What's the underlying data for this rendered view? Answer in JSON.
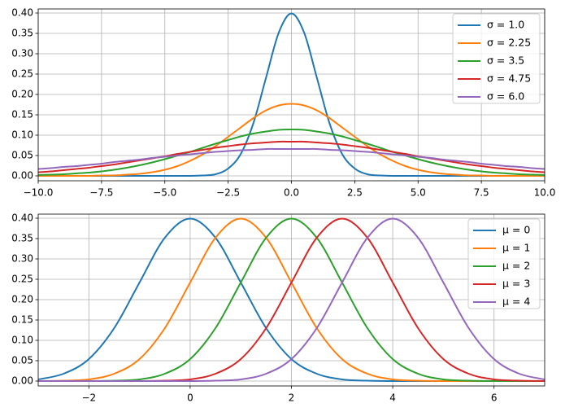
{
  "chart_data": [
    {
      "type": "line",
      "grid": true,
      "legend": "upper right",
      "x": [
        -10,
        -9.5,
        -9,
        -8.5,
        -8,
        -7.5,
        -7,
        -6.5,
        -6,
        -5.5,
        -5,
        -4.5,
        -4,
        -3.5,
        -3,
        -2.5,
        -2,
        -1.5,
        -1,
        -0.5,
        0,
        0.5,
        1,
        1.5,
        2,
        2.5,
        3,
        3.5,
        4,
        4.5,
        5,
        5.5,
        6,
        6.5,
        7,
        7.5,
        8,
        8.5,
        9,
        9.5,
        10
      ],
      "xlim": [
        -10,
        10
      ],
      "xticks": [
        {
          "value": -10,
          "label": "−10.0"
        },
        {
          "value": -7.5,
          "label": "−7.5"
        },
        {
          "value": -5,
          "label": "−5.0"
        },
        {
          "value": -2.5,
          "label": "−2.5"
        },
        {
          "value": 0,
          "label": "0.0"
        },
        {
          "value": 2.5,
          "label": "2.5"
        },
        {
          "value": 5,
          "label": "5.0"
        },
        {
          "value": 7.5,
          "label": "7.5"
        },
        {
          "value": 10,
          "label": "10.0"
        }
      ],
      "ylim": [
        -0.012,
        0.41
      ],
      "yticks": [
        {
          "value": 0,
          "label": "0.00"
        },
        {
          "value": 0.05,
          "label": "0.05"
        },
        {
          "value": 0.1,
          "label": "0.10"
        },
        {
          "value": 0.15,
          "label": "0.15"
        },
        {
          "value": 0.2,
          "label": "0.20"
        },
        {
          "value": 0.25,
          "label": "0.25"
        },
        {
          "value": 0.3,
          "label": "0.30"
        },
        {
          "value": 0.35,
          "label": "0.35"
        },
        {
          "value": 0.4,
          "label": "0.40"
        }
      ],
      "series": [
        {
          "name": "σ = 1.0",
          "color": "#1f77b4",
          "values": [
            0,
            0,
            0,
            0,
            0,
            0,
            0,
            0,
            0,
            0,
            0,
            0,
            0,
            0.001,
            0.004,
            0.018,
            0.054,
            0.13,
            0.242,
            0.352,
            0.399,
            0.352,
            0.242,
            0.13,
            0.054,
            0.018,
            0.004,
            0.001,
            0,
            0,
            0,
            0,
            0,
            0,
            0,
            0,
            0,
            0,
            0,
            0,
            0
          ]
        },
        {
          "name": "σ = 2.25",
          "color": "#ff7f0e",
          "values": [
            0,
            0,
            0,
            0,
            0,
            0.001,
            0.001,
            0.003,
            0.005,
            0.009,
            0.015,
            0.024,
            0.037,
            0.053,
            0.073,
            0.096,
            0.119,
            0.142,
            0.161,
            0.173,
            0.177,
            0.173,
            0.161,
            0.142,
            0.119,
            0.096,
            0.073,
            0.053,
            0.037,
            0.024,
            0.015,
            0.009,
            0.005,
            0.003,
            0.001,
            0.001,
            0,
            0,
            0,
            0,
            0
          ]
        },
        {
          "name": "σ = 3.5",
          "color": "#2ca02c",
          "values": [
            0.002,
            0.003,
            0.004,
            0.006,
            0.008,
            0.011,
            0.015,
            0.02,
            0.026,
            0.033,
            0.041,
            0.05,
            0.059,
            0.069,
            0.079,
            0.088,
            0.097,
            0.104,
            0.109,
            0.113,
            0.114,
            0.113,
            0.109,
            0.104,
            0.097,
            0.088,
            0.079,
            0.069,
            0.059,
            0.05,
            0.041,
            0.033,
            0.026,
            0.02,
            0.015,
            0.011,
            0.008,
            0.006,
            0.004,
            0.003,
            0.002
          ]
        },
        {
          "name": "σ = 4.75",
          "color": "#d62728",
          "values": [
            0.009,
            0.011,
            0.014,
            0.017,
            0.02,
            0.024,
            0.028,
            0.033,
            0.038,
            0.043,
            0.048,
            0.054,
            0.059,
            0.064,
            0.069,
            0.073,
            0.077,
            0.08,
            0.082,
            0.084,
            0.084,
            0.084,
            0.082,
            0.08,
            0.077,
            0.073,
            0.069,
            0.064,
            0.059,
            0.054,
            0.048,
            0.043,
            0.038,
            0.033,
            0.028,
            0.024,
            0.02,
            0.017,
            0.014,
            0.011,
            0.009
          ]
        },
        {
          "name": "σ = 6.0",
          "color": "#9467bd",
          "values": [
            0.017,
            0.019,
            0.022,
            0.024,
            0.027,
            0.03,
            0.034,
            0.037,
            0.04,
            0.044,
            0.047,
            0.05,
            0.053,
            0.056,
            0.059,
            0.061,
            0.063,
            0.064,
            0.066,
            0.066,
            0.066,
            0.066,
            0.066,
            0.064,
            0.063,
            0.061,
            0.059,
            0.056,
            0.053,
            0.05,
            0.047,
            0.044,
            0.04,
            0.037,
            0.034,
            0.03,
            0.027,
            0.024,
            0.022,
            0.019,
            0.017
          ]
        }
      ]
    },
    {
      "type": "line",
      "grid": true,
      "legend": "upper right",
      "x": [
        -3,
        -2.5,
        -2,
        -1.5,
        -1,
        -0.5,
        0,
        0.5,
        1,
        1.5,
        2,
        2.5,
        3,
        3.5,
        4,
        4.5,
        5,
        5.5,
        6,
        6.5,
        7
      ],
      "xlim": [
        -3,
        7
      ],
      "xticks": [
        {
          "value": -2,
          "label": "−2"
        },
        0,
        2,
        4,
        6
      ],
      "ylim": [
        -0.012,
        0.41
      ],
      "yticks": [
        {
          "value": 0,
          "label": "0.00"
        },
        {
          "value": 0.05,
          "label": "0.05"
        },
        {
          "value": 0.1,
          "label": "0.10"
        },
        {
          "value": 0.15,
          "label": "0.15"
        },
        {
          "value": 0.2,
          "label": "0.20"
        },
        {
          "value": 0.25,
          "label": "0.25"
        },
        {
          "value": 0.3,
          "label": "0.30"
        },
        {
          "value": 0.35,
          "label": "0.35"
        },
        {
          "value": 0.4,
          "label": "0.40"
        }
      ],
      "series": [
        {
          "name": "μ = 0",
          "color": "#1f77b4",
          "values": [
            0.004,
            0.018,
            0.054,
            0.13,
            0.242,
            0.352,
            0.399,
            0.352,
            0.242,
            0.13,
            0.054,
            0.018,
            0.004,
            0.001,
            0,
            0,
            0,
            0,
            0,
            0,
            0
          ]
        },
        {
          "name": "μ = 1",
          "color": "#ff7f0e",
          "values": [
            0,
            0.001,
            0.004,
            0.018,
            0.054,
            0.13,
            0.242,
            0.352,
            0.399,
            0.352,
            0.242,
            0.13,
            0.054,
            0.018,
            0.004,
            0.001,
            0,
            0,
            0,
            0,
            0
          ]
        },
        {
          "name": "μ = 2",
          "color": "#2ca02c",
          "values": [
            0,
            0,
            0,
            0.001,
            0.004,
            0.018,
            0.054,
            0.13,
            0.242,
            0.352,
            0.399,
            0.352,
            0.242,
            0.13,
            0.054,
            0.018,
            0.004,
            0.001,
            0,
            0,
            0
          ]
        },
        {
          "name": "μ = 3",
          "color": "#d62728",
          "values": [
            0,
            0,
            0,
            0,
            0,
            0.001,
            0.004,
            0.018,
            0.054,
            0.13,
            0.242,
            0.352,
            0.399,
            0.352,
            0.242,
            0.13,
            0.054,
            0.018,
            0.004,
            0.001,
            0
          ]
        },
        {
          "name": "μ = 4",
          "color": "#9467bd",
          "values": [
            0,
            0,
            0,
            0,
            0,
            0,
            0,
            0.001,
            0.004,
            0.018,
            0.054,
            0.13,
            0.242,
            0.352,
            0.399,
            0.352,
            0.242,
            0.13,
            0.054,
            0.018,
            0.004
          ]
        }
      ]
    }
  ]
}
